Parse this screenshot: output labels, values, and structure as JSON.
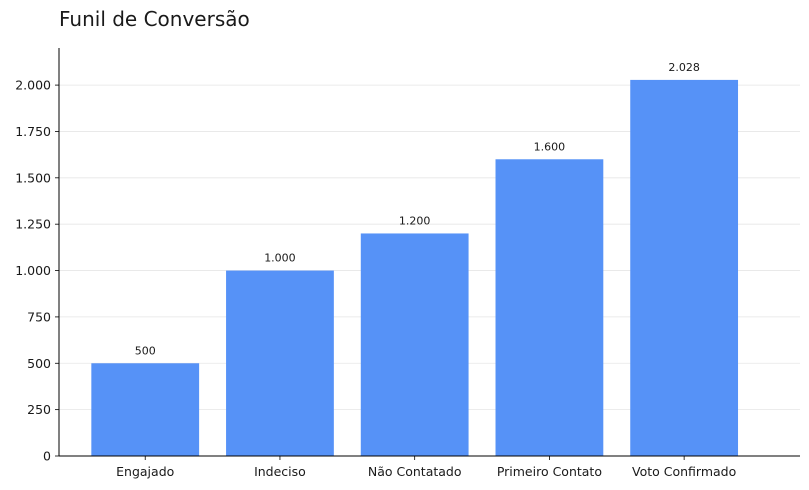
{
  "chart_data": {
    "type": "bar",
    "title": "Funil de Conversão",
    "xlabel": "",
    "ylabel": "",
    "categories": [
      "Engajado",
      "Indeciso",
      "Não Contatado",
      "Primeiro Contato",
      "Voto Confirmado"
    ],
    "values": [
      500,
      1000,
      1200,
      1600,
      2028
    ],
    "value_labels": [
      "500",
      "1.000",
      "1.200",
      "1.600",
      "2.028"
    ],
    "ylim": [
      0,
      2200
    ],
    "yticks": [
      0,
      250,
      500,
      750,
      1000,
      1250,
      1500,
      1750,
      2000
    ],
    "ytick_labels": [
      "0",
      "250",
      "500",
      "750",
      "1.000",
      "1.250",
      "1.500",
      "1.750",
      "2.000"
    ],
    "grid": "horizontal",
    "bar_color": "#5692f7",
    "grid_color": "#e6e6e6",
    "axis_color": "#000000"
  }
}
